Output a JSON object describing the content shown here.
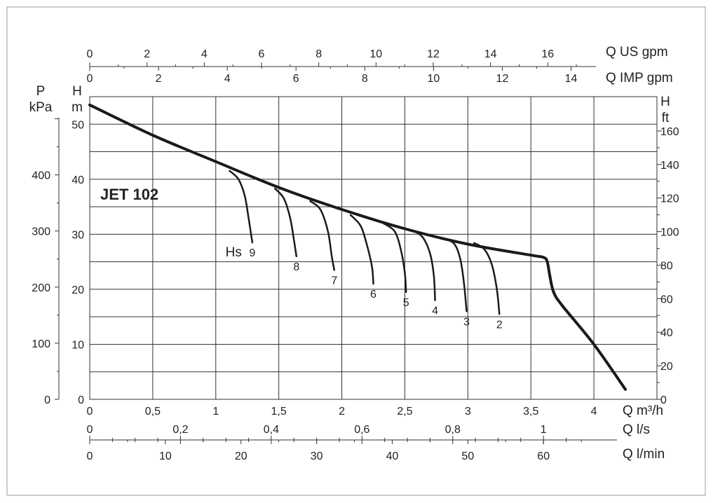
{
  "chart_data": {
    "type": "line",
    "title": "JET 102",
    "colors": {
      "curve": "#1a1a1a",
      "grid": "#333333",
      "frame": "#9a9a9a"
    },
    "axes": {
      "flow_m3h": {
        "unit_label": "Q m³/h",
        "ticks": [
          "0",
          "0,5",
          "1",
          "1,5",
          "2",
          "2,5",
          "3",
          "3,5",
          "4"
        ],
        "range": [
          0,
          4.5
        ]
      },
      "flow_ls": {
        "unit_label": "Q l/s",
        "ticks": [
          "0",
          "0,2",
          "0,4",
          "0,6",
          "0,8",
          "1"
        ]
      },
      "flow_lmin": {
        "unit_label": "Q l/min",
        "ticks": [
          "0",
          "10",
          "20",
          "30",
          "40",
          "50",
          "60"
        ]
      },
      "flow_us_gpm": {
        "unit_label": "Q US gpm",
        "ticks": [
          "0",
          "2",
          "4",
          "6",
          "8",
          "10",
          "12",
          "14",
          "16"
        ]
      },
      "flow_imp_gpm": {
        "unit_label": "Q IMP gpm",
        "ticks": [
          "0",
          "2",
          "4",
          "6",
          "8",
          "10",
          "12",
          "14"
        ]
      },
      "head_m": {
        "unit_label": [
          "H",
          "m"
        ],
        "ticks": [
          "0",
          "10",
          "20",
          "30",
          "40",
          "50"
        ],
        "range": [
          0,
          55
        ]
      },
      "pressure_kpa": {
        "unit_label": [
          "P",
          "kPa"
        ],
        "ticks": [
          "0",
          "100",
          "200",
          "300",
          "400"
        ]
      },
      "head_ft": {
        "unit_label": [
          "H",
          "ft"
        ],
        "ticks": [
          "0",
          "20",
          "40",
          "60",
          "80",
          "100",
          "120",
          "140",
          "160"
        ]
      }
    },
    "grid": true,
    "main_curve": {
      "x": [
        0,
        0.5,
        1.0,
        1.5,
        2.0,
        2.5,
        3.0,
        3.5,
        3.6,
        3.63,
        3.65,
        3.68,
        3.75,
        4.0,
        4.25
      ],
      "y": [
        53.5,
        48,
        43.2,
        38.5,
        34.5,
        31,
        28.2,
        26.2,
        25.8,
        25,
        22.5,
        19.5,
        17,
        10,
        1.8
      ]
    },
    "suction_label": "Hs",
    "suction_curves": [
      {
        "label": "9",
        "x": [
          1.11,
          1.18,
          1.23,
          1.26,
          1.29
        ],
        "y": [
          41.5,
          40,
          37,
          33,
          28.5
        ]
      },
      {
        "label": "8",
        "x": [
          1.47,
          1.54,
          1.59,
          1.62,
          1.64
        ],
        "y": [
          38.3,
          36.5,
          33,
          29,
          26
        ]
      },
      {
        "label": "7",
        "x": [
          1.75,
          1.83,
          1.89,
          1.92,
          1.94
        ],
        "y": [
          36,
          34.5,
          30.5,
          26,
          23.5
        ]
      },
      {
        "label": "6",
        "x": [
          2.07,
          2.15,
          2.2,
          2.24,
          2.25
        ],
        "y": [
          33.5,
          31.5,
          28,
          24,
          21
        ]
      },
      {
        "label": "5",
        "x": [
          2.33,
          2.42,
          2.47,
          2.5,
          2.51
        ],
        "y": [
          32,
          30.5,
          27,
          23,
          19.5
        ]
      },
      {
        "label": "4",
        "x": [
          2.56,
          2.64,
          2.7,
          2.73,
          2.74
        ],
        "y": [
          30.7,
          29.5,
          26.5,
          22.5,
          18
        ]
      },
      {
        "label": "3",
        "x": [
          2.8,
          2.89,
          2.94,
          2.97,
          2.99
        ],
        "y": [
          29.3,
          28.3,
          25.5,
          21,
          16
        ]
      },
      {
        "label": "2",
        "x": [
          3.05,
          3.13,
          3.19,
          3.23,
          3.25
        ],
        "y": [
          28.4,
          27.3,
          24.5,
          20,
          15.5
        ]
      }
    ]
  }
}
